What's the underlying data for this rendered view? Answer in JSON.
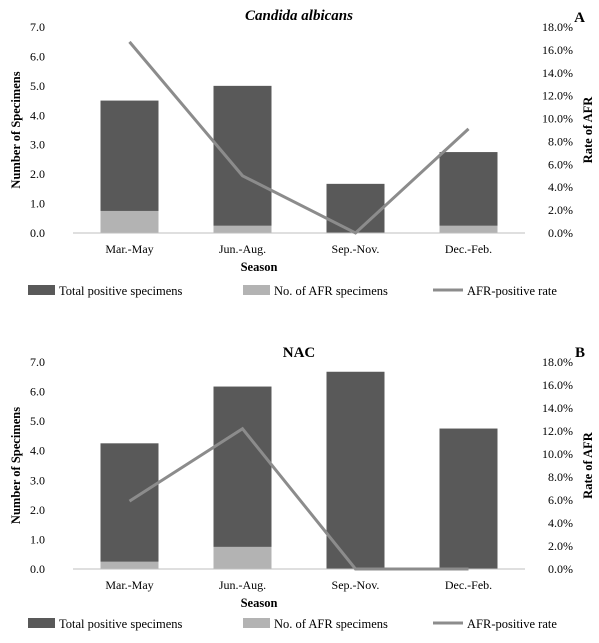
{
  "chart_data": [
    {
      "type": "bar",
      "panel": "A",
      "title": "Candida albicans",
      "title_italic": true,
      "categories": [
        "Mar.-May",
        "Jun.-Aug.",
        "Sep.-Nov.",
        "Dec.-Feb."
      ],
      "xlabel": "Season",
      "ylabel": "Number of Specimens",
      "y2label": "Rate of AFR",
      "ylim": [
        0,
        7
      ],
      "y2lim": [
        0,
        18
      ],
      "y_ticks": [
        "0.0",
        "1.0",
        "2.0",
        "3.0",
        "4.0",
        "5.0",
        "6.0",
        "7.0"
      ],
      "y2_ticks": [
        "0.0%",
        "2.0%",
        "4.0%",
        "6.0%",
        "8.0%",
        "10.0%",
        "12.0%",
        "14.0%",
        "16.0%",
        "18.0%"
      ],
      "series": [
        {
          "name": "Total positive specimens",
          "kind": "bar",
          "axis": "left",
          "color": "#595959",
          "values": [
            4.5,
            5.0,
            1.67,
            2.75
          ]
        },
        {
          "name": "No. of AFR specimens",
          "kind": "bar",
          "axis": "left",
          "color": "#b3b3b3",
          "values": [
            0.75,
            0.25,
            0.0,
            0.25
          ]
        },
        {
          "name": "AFR-positive rate",
          "kind": "line",
          "axis": "right",
          "color": "#8c8c8c",
          "values": [
            16.7,
            5.0,
            0.0,
            9.1
          ]
        }
      ],
      "grid": false,
      "legend_position": "bottom"
    },
    {
      "type": "bar",
      "panel": "B",
      "title": "NAC",
      "title_italic": false,
      "categories": [
        "Mar.-May",
        "Jun.-Aug.",
        "Sep.-Nov.",
        "Dec.-Feb."
      ],
      "xlabel": "Season",
      "ylabel": "Number of Specimens",
      "y2label": "Rate of AFR",
      "ylim": [
        0,
        7
      ],
      "y2lim": [
        0,
        18
      ],
      "y_ticks": [
        "0.0",
        "1.0",
        "2.0",
        "3.0",
        "4.0",
        "5.0",
        "6.0",
        "7.0"
      ],
      "y2_ticks": [
        "0.0%",
        "2.0%",
        "4.0%",
        "6.0%",
        "8.0%",
        "10.0%",
        "12.0%",
        "14.0%",
        "16.0%",
        "18.0%"
      ],
      "series": [
        {
          "name": "Total positive specimens",
          "kind": "bar",
          "axis": "left",
          "color": "#595959",
          "values": [
            4.25,
            6.17,
            6.67,
            4.75
          ]
        },
        {
          "name": "No. of AFR specimens",
          "kind": "bar",
          "axis": "left",
          "color": "#b3b3b3",
          "values": [
            0.25,
            0.75,
            0.0,
            0.0
          ]
        },
        {
          "name": "AFR-positive rate",
          "kind": "line",
          "axis": "right",
          "color": "#8c8c8c",
          "values": [
            5.9,
            12.2,
            0.0,
            0.0
          ]
        }
      ],
      "grid": false,
      "legend_position": "bottom"
    }
  ]
}
